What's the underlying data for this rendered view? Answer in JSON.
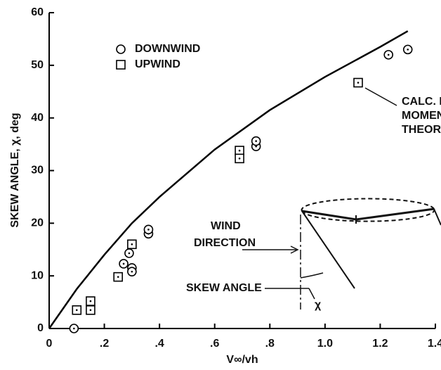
{
  "chart_data": {
    "type": "scatter",
    "y_label": "SKEW ANGLE, χ, deg",
    "x_label": "V∞/vh",
    "xlim": [
      0,
      1.4
    ],
    "ylim": [
      0,
      60
    ],
    "xticks": [
      0,
      {
        "value": 0.2,
        "label": ".2"
      },
      {
        "value": 0.4,
        "label": ".4"
      },
      {
        "value": 0.6,
        "label": ".6"
      },
      {
        "value": 0.8,
        "label": ".8"
      },
      {
        "value": 1.0,
        "label": "1.0"
      },
      {
        "value": 1.2,
        "label": "1.2"
      },
      {
        "value": 1.4,
        "label": "1.4"
      }
    ],
    "yticks": [
      0,
      10,
      20,
      30,
      40,
      50,
      60
    ],
    "color": "#000000",
    "series": [
      {
        "name": "DOWNWIND",
        "marker": "circle",
        "x": [
          0.09,
          0.27,
          0.29,
          0.3,
          0.3,
          0.36,
          0.36,
          0.75,
          0.75,
          1.23,
          1.3
        ],
        "values": [
          0,
          12.3,
          14.3,
          11.5,
          10.8,
          18,
          18.8,
          34.6,
          35.6,
          52,
          53
        ]
      },
      {
        "name": "UPWIND",
        "marker": "square",
        "x": [
          0.1,
          0.15,
          0.15,
          0.25,
          0.3,
          0.69,
          0.69,
          1.12
        ],
        "values": [
          3.5,
          3.5,
          5.2,
          9.8,
          16,
          33.8,
          32.3,
          46.7
        ]
      }
    ],
    "curve": {
      "x": [
        0,
        0.1,
        0.2,
        0.3,
        0.4,
        0.6,
        0.8,
        1.0,
        1.2,
        1.3
      ],
      "values": [
        0,
        7.5,
        14,
        20,
        25,
        34,
        41.5,
        47.8,
        53.5,
        56.5
      ]
    },
    "curve_label": [
      "CALC. FROM",
      "MOMENTUM",
      "THEORY"
    ],
    "diagram_labels": {
      "wind": [
        "WIND",
        "DIRECTION"
      ],
      "skew": "SKEW ANGLE",
      "chi": "χ"
    }
  }
}
